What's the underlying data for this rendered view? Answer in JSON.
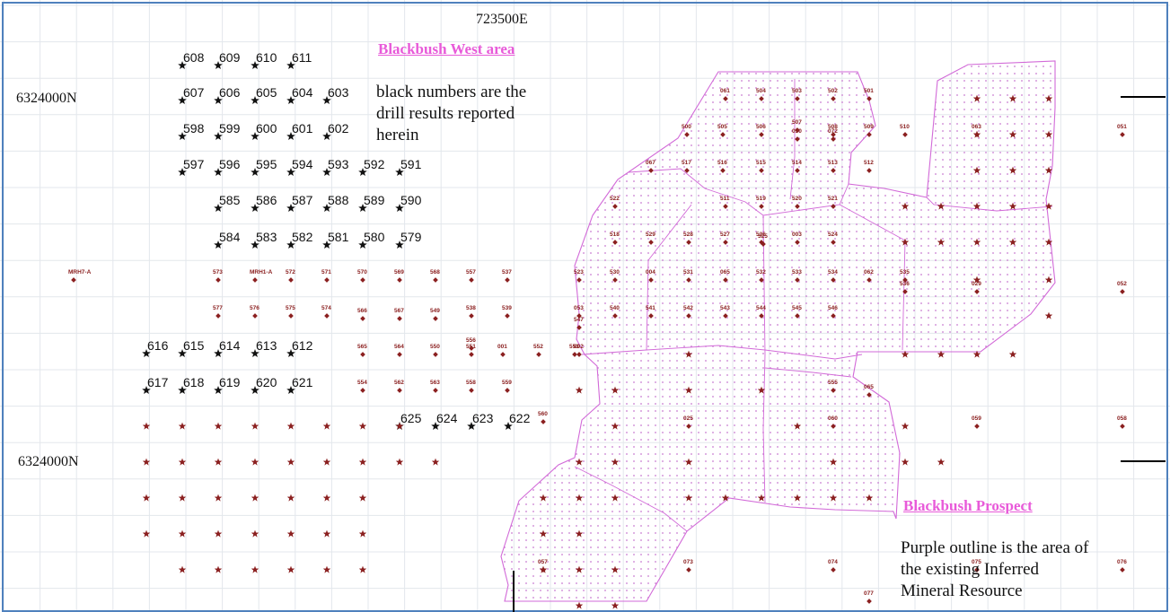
{
  "map": {
    "easting_label": "723500E",
    "northing_labels": [
      "6324000N",
      "6324000N"
    ],
    "area_titles": {
      "west": "Blackbush West area",
      "prospect": "Blackbush Prospect"
    },
    "notes": {
      "west": [
        "black numbers are the",
        "drill results reported",
        "herein"
      ],
      "prospect": [
        "Purple outline is the area of",
        "the existing Inferred",
        "Mineral Resource"
      ]
    },
    "colors": {
      "frame": "#4f81bd",
      "grid": "#e3e7ec",
      "resource_outline": "#d26ad8",
      "resource_dots": "#c87ad0",
      "hole_marker": "#8b2020",
      "reported_marker": "#111111",
      "title": "#e85ad9"
    },
    "reported_holes": [
      "608",
      "609",
      "610",
      "611",
      "607",
      "606",
      "605",
      "604",
      "603",
      "598",
      "599",
      "600",
      "601",
      "602",
      "597",
      "596",
      "595",
      "594",
      "593",
      "592",
      "591",
      "585",
      "586",
      "587",
      "588",
      "589",
      "590",
      "584",
      "583",
      "582",
      "581",
      "580",
      "579",
      "616",
      "615",
      "614",
      "613",
      "612",
      "617",
      "618",
      "619",
      "620",
      "621",
      "625",
      "624",
      "623",
      "622"
    ],
    "existing_holes": [
      "MRH7-A",
      "573",
      "MRH1-A",
      "572",
      "571",
      "570",
      "569",
      "568",
      "557",
      "537",
      "577",
      "576",
      "575",
      "574",
      "566",
      "567",
      "549",
      "538",
      "539",
      "556",
      "565",
      "564",
      "550",
      "551",
      "001",
      "552",
      "553",
      "554",
      "562",
      "563",
      "558",
      "559",
      "560",
      "061",
      "504",
      "503",
      "502",
      "501",
      "500",
      "505",
      "506",
      "507",
      "508",
      "509",
      "510",
      "063",
      "051",
      "050",
      "072",
      "067",
      "517",
      "516",
      "515",
      "514",
      "513",
      "512",
      "511",
      "519",
      "520",
      "521",
      "522",
      "518",
      "529",
      "528",
      "527",
      "526",
      "525",
      "003",
      "524",
      "523",
      "530",
      "004",
      "531",
      "065",
      "532",
      "533",
      "534",
      "062",
      "535",
      "536",
      "029",
      "052",
      "053",
      "540",
      "541",
      "542",
      "543",
      "544",
      "545",
      "546",
      "547",
      "002",
      "555",
      "065",
      "025",
      "060",
      "059",
      "058",
      "057",
      "073",
      "074",
      "075",
      "076",
      "077",
      "064"
    ],
    "icons": {
      "reported_hole": "black-star-icon",
      "existing_hole": "maroon-diamond-icon"
    }
  }
}
